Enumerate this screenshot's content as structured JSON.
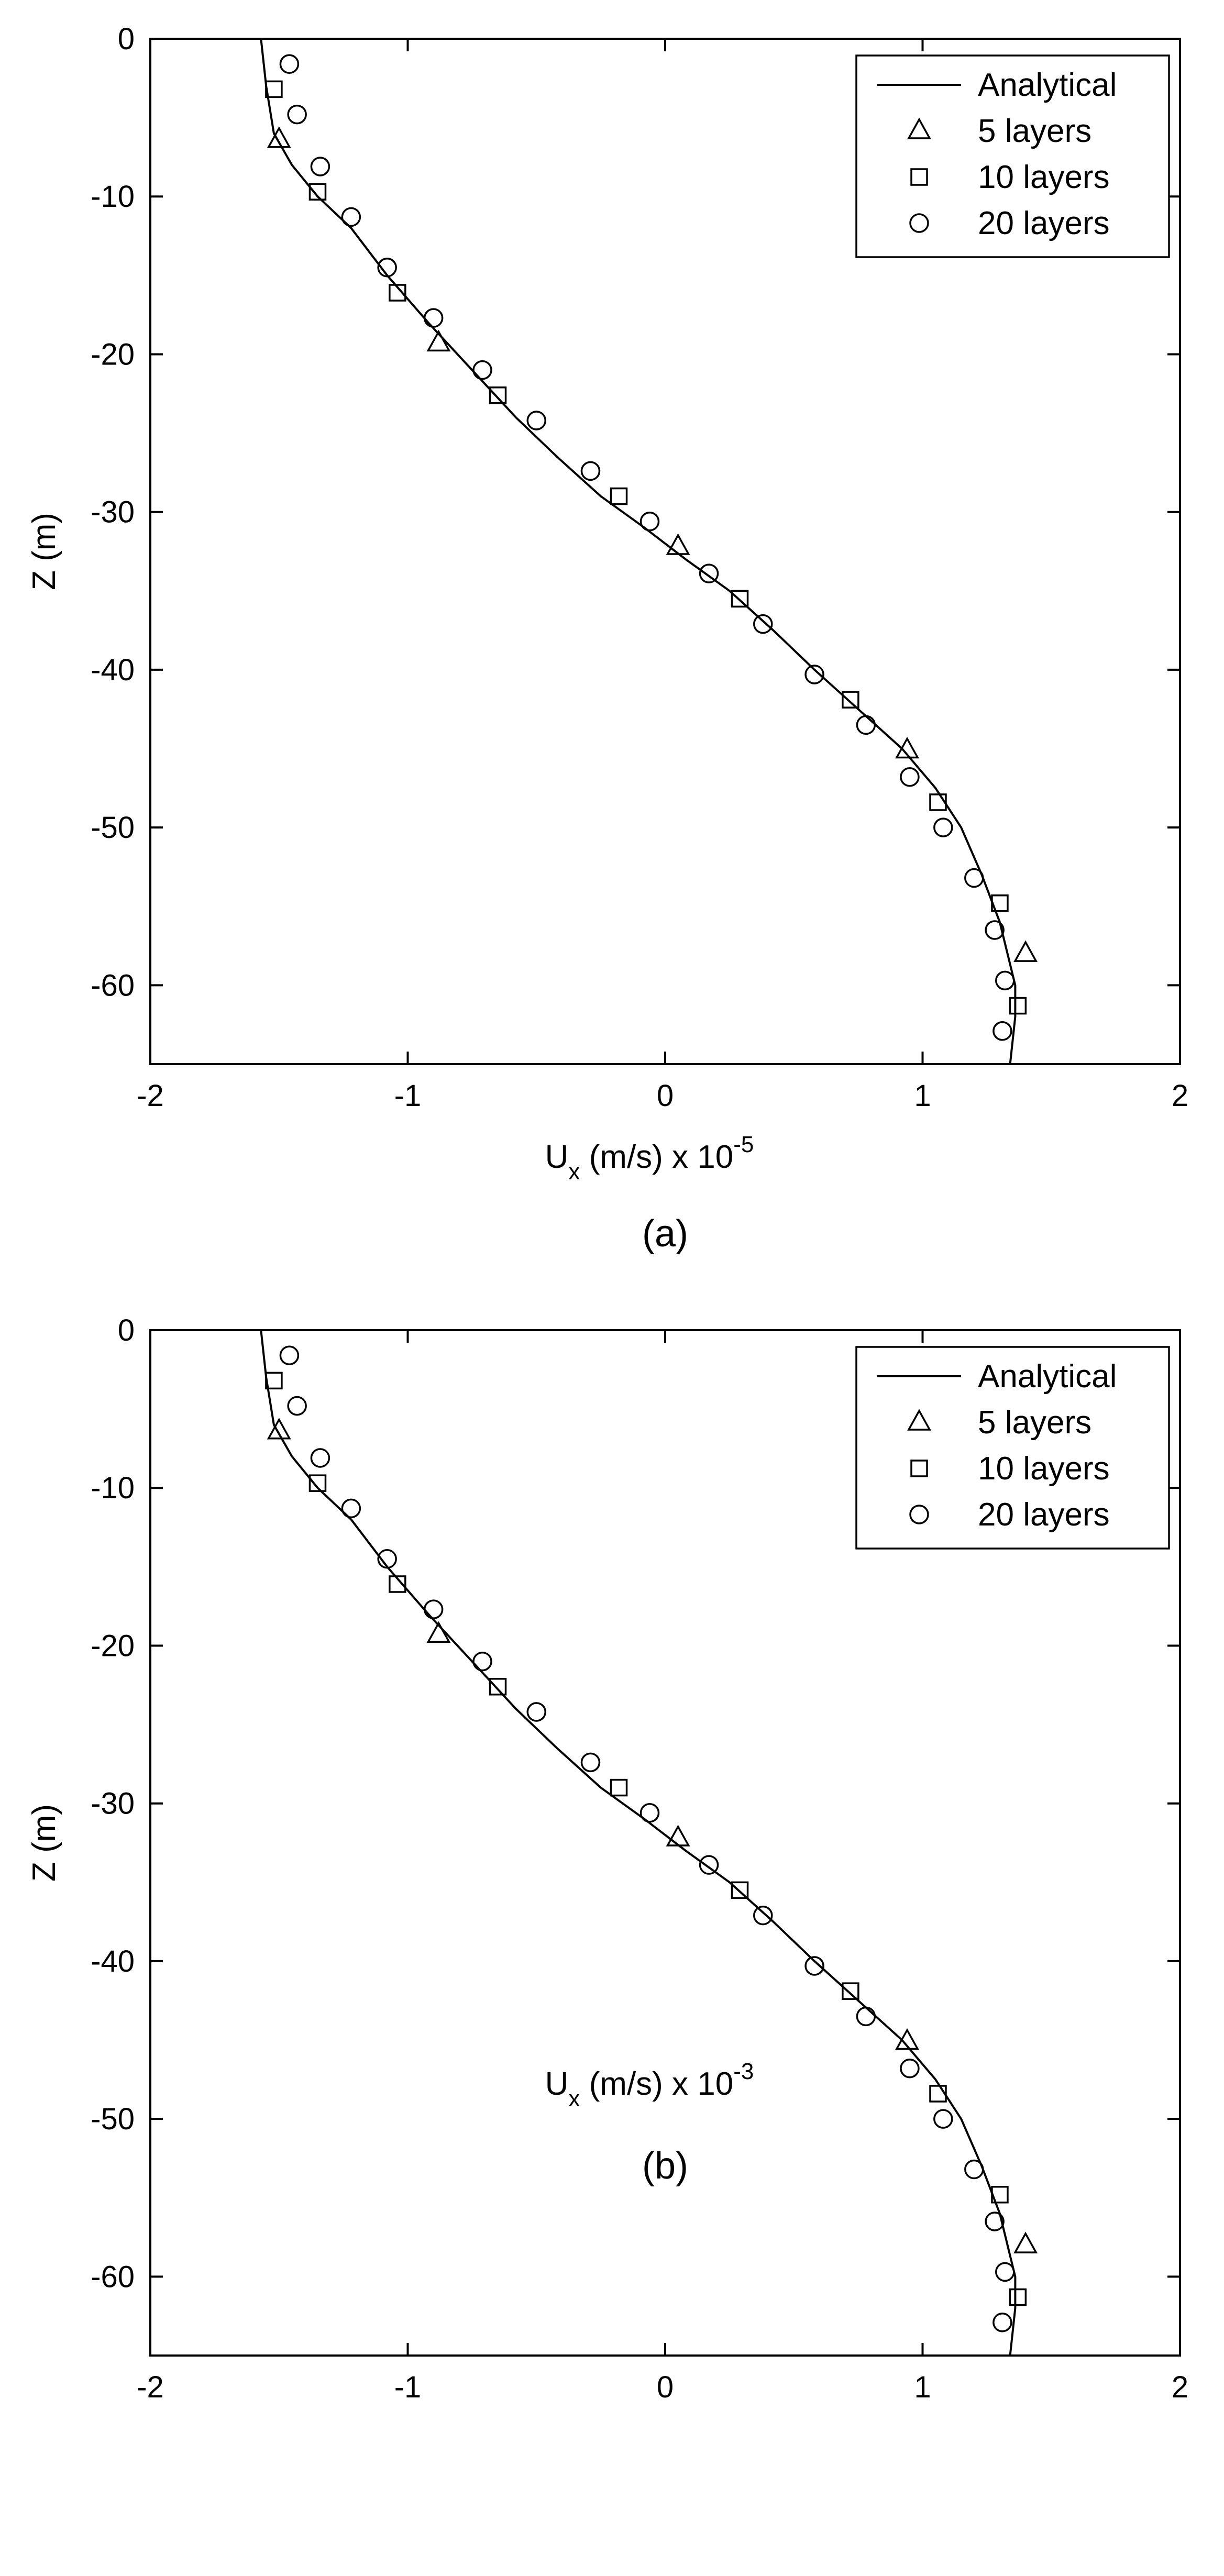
{
  "chart_data": [
    {
      "panel": "(a)",
      "type": "line",
      "xlabel": {
        "main": "U",
        "sub": "x",
        "units": " (m/s)  x 10",
        "exp": "-5"
      },
      "ylabel": "Z (m)",
      "xlim": [
        -2,
        2
      ],
      "ylim": [
        -65,
        0
      ],
      "xticks": [
        -2,
        -1,
        0,
        1,
        2
      ],
      "yticks": [
        0,
        -10,
        -20,
        -30,
        -40,
        -50,
        -60
      ],
      "grid": false,
      "legend_position": "top-right",
      "series": [
        {
          "name": "Analytical",
          "style": "line",
          "points": [
            [
              -1.57,
              0
            ],
            [
              -1.55,
              -3
            ],
            [
              -1.52,
              -6
            ],
            [
              -1.45,
              -8
            ],
            [
              -1.35,
              -10
            ],
            [
              -1.22,
              -12
            ],
            [
              -1.08,
              -15
            ],
            [
              -0.92,
              -18
            ],
            [
              -0.75,
              -21
            ],
            [
              -0.58,
              -24
            ],
            [
              -0.42,
              -26.5
            ],
            [
              -0.25,
              -29
            ],
            [
              -0.08,
              -31
            ],
            [
              0.08,
              -33
            ],
            [
              0.25,
              -35
            ],
            [
              0.42,
              -37.5
            ],
            [
              0.58,
              -40
            ],
            [
              0.75,
              -42.5
            ],
            [
              0.92,
              -45
            ],
            [
              1.05,
              -47.5
            ],
            [
              1.15,
              -50
            ],
            [
              1.23,
              -53
            ],
            [
              1.3,
              -56
            ],
            [
              1.36,
              -60
            ],
            [
              1.36,
              -62
            ],
            [
              1.34,
              -65
            ]
          ]
        },
        {
          "name": "5 layers",
          "style": "triangle",
          "points": [
            [
              -1.5,
              -6.4
            ],
            [
              -0.88,
              -19.3
            ],
            [
              0.05,
              -32.2
            ],
            [
              0.94,
              -45.1
            ],
            [
              1.4,
              -58
            ]
          ]
        },
        {
          "name": "10 layers",
          "style": "square",
          "points": [
            [
              -1.52,
              -3.2
            ],
            [
              -1.35,
              -9.7
            ],
            [
              -1.04,
              -16.1
            ],
            [
              -0.65,
              -22.6
            ],
            [
              -0.18,
              -29
            ],
            [
              0.29,
              -35.5
            ],
            [
              0.72,
              -41.9
            ],
            [
              1.06,
              -48.4
            ],
            [
              1.3,
              -54.8
            ],
            [
              1.37,
              -61.3
            ]
          ]
        },
        {
          "name": "20 layers",
          "style": "circle",
          "points": [
            [
              -1.46,
              -1.6
            ],
            [
              -1.43,
              -4.8
            ],
            [
              -1.34,
              -8.1
            ],
            [
              -1.22,
              -11.3
            ],
            [
              -1.08,
              -14.5
            ],
            [
              -0.9,
              -17.7
            ],
            [
              -0.71,
              -21
            ],
            [
              -0.5,
              -24.2
            ],
            [
              -0.29,
              -27.4
            ],
            [
              -0.06,
              -30.6
            ],
            [
              0.17,
              -33.9
            ],
            [
              0.38,
              -37.1
            ],
            [
              0.58,
              -40.3
            ],
            [
              0.78,
              -43.5
            ],
            [
              0.95,
              -46.8
            ],
            [
              1.08,
              -50
            ],
            [
              1.2,
              -53.2
            ],
            [
              1.28,
              -56.5
            ],
            [
              1.32,
              -59.7
            ],
            [
              1.31,
              -62.9
            ]
          ]
        }
      ]
    },
    {
      "panel": "(b)",
      "type": "line",
      "xlabel": {
        "main": "U",
        "sub": "x",
        "units": " (m/s) x 10",
        "exp": "-3"
      },
      "ylabel": "Z (m)",
      "xlim": [
        -2,
        2
      ],
      "ylim": [
        -65,
        0
      ],
      "xticks": [
        -2,
        -1,
        0,
        1,
        2
      ],
      "yticks": [
        0,
        -10,
        -20,
        -30,
        -40,
        -50,
        -60
      ],
      "grid": false,
      "legend_position": "top-right",
      "series": [
        {
          "name": "Analytical",
          "style": "line",
          "points": [
            [
              -1.57,
              0
            ],
            [
              -1.55,
              -3
            ],
            [
              -1.52,
              -6
            ],
            [
              -1.45,
              -8
            ],
            [
              -1.35,
              -10
            ],
            [
              -1.22,
              -12
            ],
            [
              -1.08,
              -15
            ],
            [
              -0.92,
              -18
            ],
            [
              -0.75,
              -21
            ],
            [
              -0.58,
              -24
            ],
            [
              -0.42,
              -26.5
            ],
            [
              -0.25,
              -29
            ],
            [
              -0.08,
              -31
            ],
            [
              0.08,
              -33
            ],
            [
              0.25,
              -35
            ],
            [
              0.42,
              -37.5
            ],
            [
              0.58,
              -40
            ],
            [
              0.75,
              -42.5
            ],
            [
              0.92,
              -45
            ],
            [
              1.05,
              -47.5
            ],
            [
              1.15,
              -50
            ],
            [
              1.23,
              -53
            ],
            [
              1.3,
              -56
            ],
            [
              1.36,
              -60
            ],
            [
              1.36,
              -62
            ],
            [
              1.34,
              -65
            ]
          ]
        },
        {
          "name": "5 layers",
          "style": "triangle",
          "points": [
            [
              -1.5,
              -6.4
            ],
            [
              -0.88,
              -19.3
            ],
            [
              0.05,
              -32.2
            ],
            [
              0.94,
              -45.1
            ],
            [
              1.4,
              -58
            ]
          ]
        },
        {
          "name": "10 layers",
          "style": "square",
          "points": [
            [
              -1.52,
              -3.2
            ],
            [
              -1.35,
              -9.7
            ],
            [
              -1.04,
              -16.1
            ],
            [
              -0.65,
              -22.6
            ],
            [
              -0.18,
              -29
            ],
            [
              0.29,
              -35.5
            ],
            [
              0.72,
              -41.9
            ],
            [
              1.06,
              -48.4
            ],
            [
              1.3,
              -54.8
            ],
            [
              1.37,
              -61.3
            ]
          ]
        },
        {
          "name": "20 layers",
          "style": "circle",
          "points": [
            [
              -1.46,
              -1.6
            ],
            [
              -1.43,
              -4.8
            ],
            [
              -1.34,
              -8.1
            ],
            [
              -1.22,
              -11.3
            ],
            [
              -1.08,
              -14.5
            ],
            [
              -0.9,
              -17.7
            ],
            [
              -0.71,
              -21
            ],
            [
              -0.5,
              -24.2
            ],
            [
              -0.29,
              -27.4
            ],
            [
              -0.06,
              -30.6
            ],
            [
              0.17,
              -33.9
            ],
            [
              0.38,
              -37.1
            ],
            [
              0.58,
              -40.3
            ],
            [
              0.78,
              -43.5
            ],
            [
              0.95,
              -46.8
            ],
            [
              1.08,
              -50
            ],
            [
              1.2,
              -53.2
            ],
            [
              1.28,
              -56.5
            ],
            [
              1.32,
              -59.7
            ],
            [
              1.31,
              -62.9
            ]
          ]
        }
      ]
    }
  ]
}
